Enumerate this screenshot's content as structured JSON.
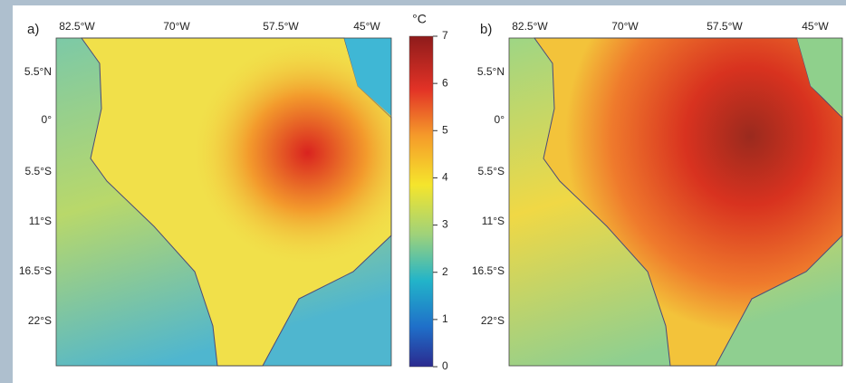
{
  "colorbar": {
    "unit": "°C",
    "lim": [
      0,
      7
    ],
    "ticks": [
      0,
      1,
      2,
      3,
      4,
      5,
      6,
      7
    ]
  },
  "panels": [
    {
      "label": "a)",
      "lon_labels": [
        "82.5°W",
        "70°W",
        "57.5°W",
        "45°W"
      ],
      "lat_labels": [
        "5.5°N",
        "0°",
        "5.5°S",
        "11°S",
        "16.5°S",
        "22°S"
      ]
    },
    {
      "label": "b)",
      "lon_labels": [
        "82.5°W",
        "70°W",
        "57.5°W",
        "45°W"
      ],
      "lat_labels": [
        "5.5°N",
        "0°",
        "5.5°S",
        "11°S",
        "16.5°S",
        "22°S"
      ]
    }
  ]
}
